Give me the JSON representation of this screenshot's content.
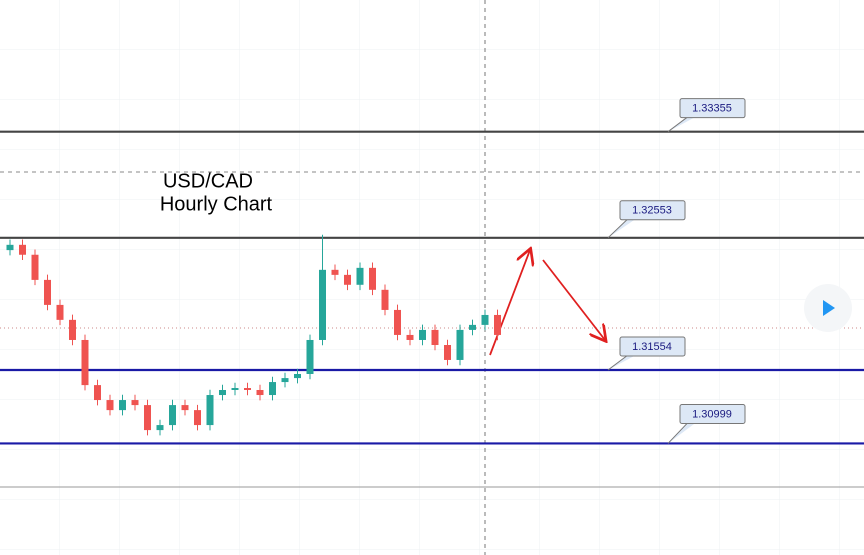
{
  "chart_data": {
    "type": "candlestick",
    "title": [
      "USD/CAD",
      "Hourly Chart"
    ],
    "ylim": [
      1.3067,
      1.3435
    ],
    "up_color": "#26a69a",
    "down_color": "#ef5350",
    "open": [
      1.3246,
      1.325,
      1.32425,
      1.32235,
      1.32046,
      1.31933,
      1.31781,
      1.3144,
      1.31327,
      1.31251,
      1.31327,
      1.31289,
      1.311,
      1.31138,
      1.31289,
      1.31251,
      1.31138,
      1.31365,
      1.31403,
      1.31418,
      1.31403,
      1.31365,
      1.31463,
      1.31493,
      1.31524,
      1.31781,
      1.32311,
      1.32273,
      1.32198,
      1.32326,
      1.3216,
      1.32008,
      1.31819,
      1.31781,
      1.31857,
      1.31743,
      1.3163,
      1.31857,
      1.31895,
      1.3197
    ],
    "high": [
      1.3254,
      1.3254,
      1.32465,
      1.32275,
      1.32086,
      1.31973,
      1.31821,
      1.3148,
      1.31367,
      1.31367,
      1.31367,
      1.31329,
      1.31178,
      1.31329,
      1.31329,
      1.31291,
      1.31405,
      1.31443,
      1.31458,
      1.31458,
      1.31443,
      1.31503,
      1.31533,
      1.31564,
      1.31821,
      1.32576,
      1.32351,
      1.32313,
      1.32366,
      1.32366,
      1.322,
      1.32048,
      1.31859,
      1.31897,
      1.31897,
      1.31783,
      1.31897,
      1.31935,
      1.3201,
      1.3201
    ],
    "low": [
      1.3242,
      1.32385,
      1.32195,
      1.32006,
      1.31893,
      1.31741,
      1.314,
      1.31287,
      1.31211,
      1.31211,
      1.31249,
      1.3106,
      1.3106,
      1.31098,
      1.31211,
      1.31098,
      1.31098,
      1.31325,
      1.31363,
      1.31363,
      1.31325,
      1.31325,
      1.31423,
      1.31453,
      1.31484,
      1.31741,
      1.32233,
      1.32158,
      1.32158,
      1.3212,
      1.31968,
      1.31779,
      1.31741,
      1.31741,
      1.31703,
      1.3159,
      1.3159,
      1.31817,
      1.31855,
      1.31779
    ],
    "close": [
      1.325,
      1.32425,
      1.32235,
      1.32046,
      1.31933,
      1.31781,
      1.3144,
      1.31327,
      1.31251,
      1.31327,
      1.31289,
      1.311,
      1.31138,
      1.31289,
      1.31251,
      1.31138,
      1.31365,
      1.31403,
      1.31418,
      1.31403,
      1.31365,
      1.31463,
      1.31493,
      1.31524,
      1.31781,
      1.32311,
      1.32273,
      1.32198,
      1.32326,
      1.3216,
      1.32008,
      1.31819,
      1.31781,
      1.31857,
      1.31743,
      1.3163,
      1.31857,
      1.31895,
      1.3197,
      1.31819
    ],
    "levels": [
      {
        "value": 1.33355,
        "color": "#444444"
      },
      {
        "value": 1.32553,
        "color": "#444444"
      },
      {
        "value": 1.31554,
        "color": "#1a1aa6"
      },
      {
        "value": 1.30999,
        "color": "#1a1aa6"
      }
    ]
  }
}
